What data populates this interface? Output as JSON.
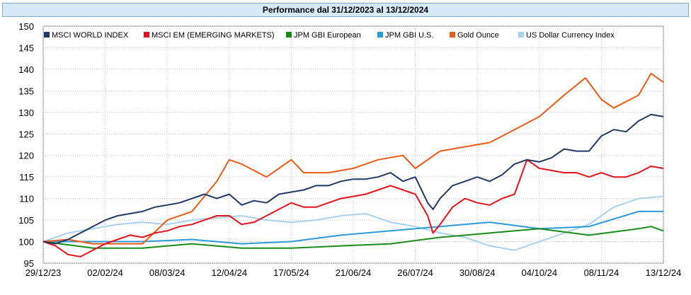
{
  "chart_data": {
    "type": "line",
    "title": "Performance dal 31/12/2023 al 13/12/2024",
    "ylim": [
      95,
      150
    ],
    "yticks": [
      95,
      100,
      105,
      110,
      115,
      120,
      125,
      130,
      135,
      140,
      145,
      150
    ],
    "xlim": [
      "2023-12-29",
      "2024-12-13"
    ],
    "xticks": [
      "29/12/23",
      "02/02/24",
      "08/03/24",
      "12/04/24",
      "17/05/24",
      "21/06/24",
      "26/07/24",
      "30/08/24",
      "04/10/24",
      "08/11/24",
      "13/12/24"
    ],
    "grid": true,
    "legend_position": "top",
    "series": [
      {
        "name": "MSCI WORLD INDEX",
        "color": "#1f3864",
        "x": [
          "2023-12-29",
          "2024-01-05",
          "2024-01-12",
          "2024-01-19",
          "2024-01-26",
          "2024-02-02",
          "2024-02-09",
          "2024-02-16",
          "2024-02-23",
          "2024-03-01",
          "2024-03-08",
          "2024-03-15",
          "2024-03-22",
          "2024-03-29",
          "2024-04-05",
          "2024-04-12",
          "2024-04-19",
          "2024-04-26",
          "2024-05-03",
          "2024-05-10",
          "2024-05-17",
          "2024-05-24",
          "2024-05-31",
          "2024-06-07",
          "2024-06-14",
          "2024-06-21",
          "2024-06-28",
          "2024-07-05",
          "2024-07-12",
          "2024-07-19",
          "2024-07-26",
          "2024-08-02",
          "2024-08-05",
          "2024-08-09",
          "2024-08-16",
          "2024-08-23",
          "2024-08-30",
          "2024-09-06",
          "2024-09-13",
          "2024-09-20",
          "2024-09-27",
          "2024-10-04",
          "2024-10-11",
          "2024-10-18",
          "2024-10-25",
          "2024-11-01",
          "2024-11-08",
          "2024-11-15",
          "2024-11-22",
          "2024-11-29",
          "2024-12-06",
          "2024-12-13"
        ],
        "values": [
          100,
          99.5,
          100.5,
          102,
          103.5,
          105,
          106,
          106.5,
          107,
          108,
          108.5,
          109,
          110,
          111,
          110,
          111,
          108.5,
          109.5,
          109,
          111,
          111.5,
          112,
          113,
          113,
          114,
          114.5,
          114.5,
          115,
          116,
          114,
          115,
          109,
          107.5,
          110,
          113,
          114,
          115,
          114,
          115.5,
          118,
          119,
          118.5,
          119.5,
          121.5,
          121,
          121,
          124.5,
          126,
          125.5,
          128,
          129.5,
          129
        ]
      },
      {
        "name": "MSCI EM (EMERGING MARKETS)",
        "color": "#e8111b",
        "x": [
          "2023-12-29",
          "2024-01-05",
          "2024-01-12",
          "2024-01-19",
          "2024-01-26",
          "2024-02-02",
          "2024-02-09",
          "2024-02-16",
          "2024-02-23",
          "2024-03-01",
          "2024-03-08",
          "2024-03-15",
          "2024-03-22",
          "2024-03-29",
          "2024-04-05",
          "2024-04-12",
          "2024-04-19",
          "2024-04-26",
          "2024-05-03",
          "2024-05-10",
          "2024-05-17",
          "2024-05-24",
          "2024-05-31",
          "2024-06-07",
          "2024-06-14",
          "2024-06-21",
          "2024-06-28",
          "2024-07-05",
          "2024-07-12",
          "2024-07-19",
          "2024-07-26",
          "2024-08-02",
          "2024-08-05",
          "2024-08-09",
          "2024-08-16",
          "2024-08-23",
          "2024-08-30",
          "2024-09-06",
          "2024-09-13",
          "2024-09-20",
          "2024-09-27",
          "2024-10-04",
          "2024-10-11",
          "2024-10-18",
          "2024-10-25",
          "2024-11-01",
          "2024-11-08",
          "2024-11-15",
          "2024-11-22",
          "2024-11-29",
          "2024-12-06",
          "2024-12-13"
        ],
        "values": [
          100,
          99,
          97,
          96.5,
          98,
          99.5,
          100.5,
          101.5,
          101,
          102,
          102.5,
          103.5,
          104,
          105,
          106,
          106,
          104,
          104.5,
          106,
          107.5,
          109,
          108,
          108,
          109,
          110,
          110.5,
          111,
          112,
          113,
          112,
          111,
          106,
          102,
          104,
          108,
          110,
          109,
          108.5,
          110,
          111,
          119,
          117,
          116.5,
          116,
          116,
          115,
          116,
          115,
          115,
          116,
          117.5,
          117
        ]
      },
      {
        "name": "JPM GBI European",
        "color": "#1a8a1a",
        "x": [
          "2023-12-29",
          "2024-01-26",
          "2024-02-23",
          "2024-03-22",
          "2024-04-19",
          "2024-05-17",
          "2024-06-14",
          "2024-07-12",
          "2024-08-09",
          "2024-09-06",
          "2024-10-04",
          "2024-11-01",
          "2024-11-29",
          "2024-12-06",
          "2024-12-13"
        ],
        "values": [
          100,
          98.5,
          98.5,
          99.5,
          98.5,
          98.5,
          99,
          99.5,
          101,
          102,
          103,
          101.5,
          103,
          103.5,
          102.5
        ]
      },
      {
        "name": "JPM GBI U.S.",
        "color": "#2a9ad8",
        "x": [
          "2023-12-29",
          "2024-01-26",
          "2024-02-23",
          "2024-03-22",
          "2024-04-19",
          "2024-05-17",
          "2024-06-14",
          "2024-07-12",
          "2024-08-09",
          "2024-09-06",
          "2024-10-04",
          "2024-11-01",
          "2024-11-29",
          "2024-12-13"
        ],
        "values": [
          100,
          100,
          100,
          100.5,
          99.5,
          100,
          101.5,
          102.5,
          103.5,
          104.5,
          103,
          103.5,
          107,
          107
        ]
      },
      {
        "name": "Gold Ounce",
        "color": "#ee5a16",
        "x": [
          "2023-12-29",
          "2024-01-12",
          "2024-01-26",
          "2024-02-09",
          "2024-02-23",
          "2024-03-08",
          "2024-03-22",
          "2024-04-05",
          "2024-04-12",
          "2024-04-19",
          "2024-05-03",
          "2024-05-17",
          "2024-05-24",
          "2024-06-07",
          "2024-06-21",
          "2024-07-05",
          "2024-07-19",
          "2024-07-26",
          "2024-08-09",
          "2024-08-23",
          "2024-09-06",
          "2024-09-20",
          "2024-10-04",
          "2024-10-18",
          "2024-10-30",
          "2024-11-08",
          "2024-11-15",
          "2024-11-29",
          "2024-12-06",
          "2024-12-13"
        ],
        "values": [
          100,
          100.5,
          99.5,
          99.5,
          99.5,
          105,
          107,
          114,
          119,
          118,
          115,
          119,
          116,
          116,
          117,
          119,
          120,
          117,
          121,
          122,
          123,
          126,
          129,
          134,
          138,
          133,
          131,
          134,
          139,
          137
        ]
      },
      {
        "name": "US Dollar Currency Index",
        "color": "#a8d0f0",
        "x": [
          "2023-12-29",
          "2024-01-12",
          "2024-01-26",
          "2024-02-09",
          "2024-02-23",
          "2024-03-08",
          "2024-03-22",
          "2024-04-05",
          "2024-04-19",
          "2024-05-03",
          "2024-05-17",
          "2024-05-31",
          "2024-06-14",
          "2024-06-28",
          "2024-07-12",
          "2024-07-26",
          "2024-08-09",
          "2024-08-23",
          "2024-09-06",
          "2024-09-20",
          "2024-10-04",
          "2024-10-18",
          "2024-11-01",
          "2024-11-15",
          "2024-11-29",
          "2024-12-13"
        ],
        "values": [
          100,
          102,
          103,
          104,
          104.5,
          104,
          105,
          105.5,
          106,
          105,
          104.5,
          105,
          106,
          106.5,
          104.5,
          103.5,
          102,
          101,
          99,
          98,
          100,
          102,
          104,
          108,
          110,
          110.5
        ]
      }
    ]
  }
}
